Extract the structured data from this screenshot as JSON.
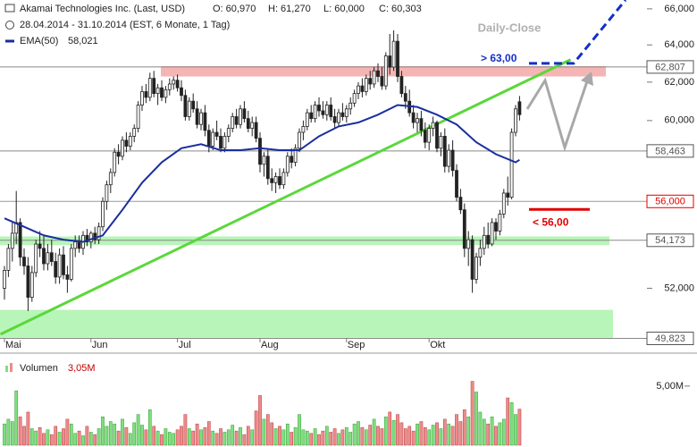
{
  "header": {
    "title": "Akamai Technologies Inc. (Last, USD)",
    "open": "O: 60,970",
    "high": "H: 61,270",
    "low": "L: 60,000",
    "close": "C: 60,303",
    "period": "28.04.2014 - 31.10.2014 (EST, 6 Monate, 1 Tag)",
    "ema_label": "EMA(50)",
    "ema_value": "58,021"
  },
  "chart_data": {
    "type": "candlestick",
    "title": "Daily-Close",
    "log_scale": true,
    "ylim": [
      49.2,
      66.5
    ],
    "yticks": [
      {
        "value": 52,
        "label": "52,000"
      },
      {
        "value": 60,
        "label": "60,000"
      },
      {
        "value": 62,
        "label": "62,000"
      },
      {
        "value": 64,
        "label": "64,000"
      },
      {
        "value": 66,
        "label": "66,000"
      }
    ],
    "months": [
      {
        "value": 0,
        "label": "Mai"
      },
      {
        "value": 22,
        "label": "Jun"
      },
      {
        "value": 44,
        "label": "Jul"
      },
      {
        "value": 65,
        "label": "Aug"
      },
      {
        "value": 87,
        "label": "Sep"
      },
      {
        "value": 108,
        "label": "Okt"
      }
    ],
    "levels": [
      {
        "value": 62.807,
        "label": "62,807",
        "color": "#555555"
      },
      {
        "value": 58.463,
        "label": "58,463",
        "color": "#555555"
      },
      {
        "value": 56.0,
        "label": "56,000",
        "color": "#e00000"
      },
      {
        "value": 54.173,
        "label": "54,173",
        "color": "#555555"
      },
      {
        "value": 49.823,
        "label": "49,823",
        "color": "#555555"
      }
    ],
    "zones": [
      {
        "from": 62.3,
        "to": 62.85,
        "color": "#f5b5b5"
      },
      {
        "from": 53.95,
        "to": 54.35,
        "color": "#b8f5b8"
      },
      {
        "from": 49.85,
        "to": 51.05,
        "color": "#b8f5b8"
      }
    ],
    "trendline": {
      "x": [
        -1,
        144
      ],
      "values": [
        50.0,
        63.2
      ],
      "color": "#5ad83a"
    },
    "target": {
      "value": 63.0,
      "label": "> 63,00",
      "color": "#1430c8"
    },
    "stop": {
      "value": 56.0,
      "label": "< 56,00",
      "color": "#e00000"
    },
    "ema": {
      "name": "EMA(50)",
      "color": "#1a2e9e",
      "x": [
        0,
        5,
        10,
        15,
        20,
        25,
        30,
        35,
        40,
        45,
        50,
        55,
        60,
        65,
        70,
        75,
        80,
        85,
        90,
        95,
        100,
        105,
        110,
        115,
        120,
        125,
        130,
        131
      ],
      "values": [
        55.2,
        54.8,
        54.4,
        54.2,
        54.1,
        54.4,
        55.6,
        56.9,
        57.9,
        58.6,
        58.8,
        58.5,
        58.5,
        58.6,
        58.5,
        58.5,
        59.2,
        59.7,
        59.9,
        60.3,
        60.8,
        60.7,
        60.3,
        59.8,
        58.9,
        58.3,
        57.9,
        58.021
      ]
    },
    "ohlc": [
      [
        52.0,
        53.0,
        51.5,
        52.8
      ],
      [
        52.8,
        54.0,
        52.5,
        53.8
      ],
      [
        53.8,
        55.0,
        53.2,
        54.5
      ],
      [
        54.5,
        56.5,
        54.0,
        55.0
      ],
      [
        55.0,
        55.2,
        53.0,
        53.4
      ],
      [
        53.4,
        53.8,
        52.6,
        53.0
      ],
      [
        53.0,
        53.4,
        51.0,
        51.6
      ],
      [
        51.6,
        53.0,
        51.4,
        52.7
      ],
      [
        52.7,
        54.2,
        52.5,
        54.0
      ],
      [
        54.0,
        54.6,
        53.4,
        53.8
      ],
      [
        53.8,
        54.4,
        52.8,
        53.1
      ],
      [
        53.1,
        54.0,
        52.8,
        53.6
      ],
      [
        53.6,
        54.2,
        53.0,
        53.2
      ],
      [
        53.2,
        53.6,
        52.2,
        52.5
      ],
      [
        52.5,
        53.8,
        52.2,
        53.5
      ],
      [
        53.5,
        53.9,
        52.4,
        52.6
      ],
      [
        52.6,
        53.0,
        51.8,
        52.4
      ],
      [
        52.4,
        54.0,
        52.3,
        53.8
      ],
      [
        53.8,
        54.4,
        53.4,
        54.1
      ],
      [
        54.1,
        54.4,
        53.6,
        53.8
      ],
      [
        53.8,
        54.6,
        53.5,
        54.4
      ],
      [
        54.4,
        54.7,
        53.9,
        54.1
      ],
      [
        54.1,
        54.6,
        53.8,
        54.5
      ],
      [
        54.5,
        54.8,
        54.0,
        54.2
      ],
      [
        54.2,
        55.0,
        54.0,
        54.8
      ],
      [
        54.8,
        56.2,
        54.6,
        56.0
      ],
      [
        56.0,
        57.0,
        55.6,
        56.8
      ],
      [
        56.8,
        57.6,
        56.4,
        57.4
      ],
      [
        57.4,
        58.6,
        57.2,
        58.4
      ],
      [
        58.4,
        58.8,
        57.8,
        58.2
      ],
      [
        58.2,
        59.2,
        58.0,
        59.0
      ],
      [
        59.0,
        59.4,
        58.4,
        58.7
      ],
      [
        58.7,
        59.4,
        58.5,
        59.2
      ],
      [
        59.2,
        59.8,
        58.9,
        59.6
      ],
      [
        59.6,
        61.0,
        59.4,
        60.8
      ],
      [
        60.8,
        61.8,
        60.5,
        61.5
      ],
      [
        61.5,
        61.9,
        60.9,
        61.2
      ],
      [
        61.2,
        62.5,
        61.0,
        62.2
      ],
      [
        62.2,
        62.6,
        61.2,
        61.4
      ],
      [
        61.4,
        61.9,
        60.8,
        61.7
      ],
      [
        61.7,
        62.1,
        61.0,
        61.2
      ],
      [
        61.2,
        61.8,
        60.9,
        61.6
      ],
      [
        61.6,
        62.2,
        61.3,
        61.9
      ],
      [
        61.9,
        62.3,
        61.6,
        62.1
      ],
      [
        62.1,
        62.4,
        61.5,
        61.7
      ],
      [
        61.7,
        62.1,
        61.0,
        61.3
      ],
      [
        61.3,
        61.6,
        60.0,
        60.2
      ],
      [
        60.2,
        61.2,
        60.0,
        61.0
      ],
      [
        61.0,
        61.4,
        60.4,
        60.6
      ],
      [
        60.6,
        61.0,
        59.6,
        59.8
      ],
      [
        59.8,
        60.6,
        59.5,
        60.4
      ],
      [
        60.4,
        60.8,
        59.2,
        59.5
      ],
      [
        59.5,
        59.8,
        58.4,
        58.7
      ],
      [
        58.7,
        59.6,
        58.5,
        59.4
      ],
      [
        59.4,
        60.0,
        59.0,
        59.2
      ],
      [
        59.2,
        59.6,
        58.4,
        58.6
      ],
      [
        58.6,
        59.4,
        58.4,
        59.2
      ],
      [
        59.2,
        59.8,
        58.9,
        59.6
      ],
      [
        59.6,
        60.4,
        59.4,
        60.2
      ],
      [
        60.2,
        60.6,
        59.6,
        59.8
      ],
      [
        59.8,
        60.8,
        59.6,
        60.6
      ],
      [
        60.6,
        61.0,
        59.9,
        60.1
      ],
      [
        60.1,
        60.5,
        59.4,
        59.6
      ],
      [
        59.6,
        60.2,
        59.2,
        59.9
      ],
      [
        59.9,
        60.2,
        58.9,
        59.1
      ],
      [
        59.1,
        59.4,
        57.4,
        57.8
      ],
      [
        57.8,
        58.4,
        57.2,
        58.2
      ],
      [
        58.2,
        58.6,
        56.8,
        57.1
      ],
      [
        57.1,
        57.6,
        56.5,
        56.9
      ],
      [
        56.9,
        57.4,
        56.4,
        57.2
      ],
      [
        57.2,
        57.6,
        56.6,
        56.8
      ],
      [
        56.8,
        57.6,
        56.6,
        57.4
      ],
      [
        57.4,
        58.4,
        57.2,
        58.2
      ],
      [
        58.2,
        58.6,
        57.6,
        57.9
      ],
      [
        57.9,
        58.8,
        57.7,
        58.6
      ],
      [
        58.6,
        59.6,
        58.4,
        59.4
      ],
      [
        59.4,
        60.0,
        59.0,
        59.7
      ],
      [
        59.7,
        60.6,
        59.5,
        60.4
      ],
      [
        60.4,
        60.8,
        59.9,
        60.1
      ],
      [
        60.1,
        61.0,
        59.9,
        60.8
      ],
      [
        60.8,
        61.2,
        60.2,
        60.5
      ],
      [
        60.5,
        61.0,
        60.1,
        60.3
      ],
      [
        60.3,
        61.0,
        60.0,
        60.8
      ],
      [
        60.8,
        61.2,
        60.0,
        60.2
      ],
      [
        60.2,
        60.6,
        59.6,
        59.9
      ],
      [
        59.9,
        60.6,
        59.7,
        60.4
      ],
      [
        60.4,
        60.9,
        60.0,
        60.2
      ],
      [
        60.2,
        60.8,
        59.9,
        60.6
      ],
      [
        60.6,
        61.2,
        60.3,
        60.9
      ],
      [
        60.9,
        61.6,
        60.7,
        61.4
      ],
      [
        61.4,
        62.0,
        61.1,
        61.8
      ],
      [
        61.8,
        62.2,
        61.2,
        61.5
      ],
      [
        61.5,
        62.4,
        61.3,
        62.2
      ],
      [
        62.2,
        62.6,
        61.6,
        61.9
      ],
      [
        61.9,
        62.8,
        61.7,
        62.6
      ],
      [
        62.6,
        63.0,
        62.0,
        62.3
      ],
      [
        62.3,
        62.8,
        61.6,
        61.8
      ],
      [
        61.8,
        63.6,
        61.6,
        63.4
      ],
      [
        63.4,
        64.6,
        62.4,
        62.8
      ],
      [
        62.8,
        64.8,
        62.6,
        64.2
      ],
      [
        64.2,
        64.6,
        62.0,
        62.3
      ],
      [
        62.3,
        62.6,
        61.2,
        61.4
      ],
      [
        61.4,
        61.8,
        60.6,
        61.0
      ],
      [
        61.0,
        61.6,
        60.2,
        60.4
      ],
      [
        60.4,
        60.8,
        59.6,
        59.9
      ],
      [
        59.9,
        60.4,
        59.4,
        60.1
      ],
      [
        60.1,
        60.5,
        59.2,
        59.5
      ],
      [
        59.5,
        59.9,
        58.6,
        58.9
      ],
      [
        58.9,
        59.8,
        58.5,
        59.6
      ],
      [
        59.6,
        60.2,
        59.2,
        59.9
      ],
      [
        59.9,
        60.0,
        58.4,
        58.6
      ],
      [
        58.6,
        59.4,
        58.2,
        59.2
      ],
      [
        59.2,
        59.6,
        57.4,
        57.7
      ],
      [
        57.7,
        58.8,
        57.4,
        58.5
      ],
      [
        58.5,
        59.0,
        57.2,
        57.5
      ],
      [
        57.5,
        57.8,
        56.0,
        56.2
      ],
      [
        56.2,
        56.6,
        55.4,
        55.6
      ],
      [
        55.6,
        55.9,
        53.4,
        53.8
      ],
      [
        53.8,
        54.6,
        53.0,
        54.2
      ],
      [
        54.2,
        54.4,
        51.8,
        52.4
      ],
      [
        52.4,
        53.6,
        52.2,
        53.4
      ],
      [
        53.4,
        54.2,
        53.0,
        53.8
      ],
      [
        53.8,
        54.8,
        53.5,
        54.4
      ],
      [
        54.4,
        55.0,
        53.8,
        54.0
      ],
      [
        54.0,
        55.2,
        53.9,
        55.0
      ],
      [
        55.0,
        55.2,
        54.2,
        54.6
      ],
      [
        54.6,
        55.6,
        54.4,
        55.4
      ],
      [
        55.4,
        56.6,
        55.2,
        56.4
      ],
      [
        56.4,
        57.2,
        55.8,
        56.2
      ],
      [
        56.2,
        59.6,
        56.1,
        59.4
      ],
      [
        59.4,
        60.8,
        59.2,
        60.6
      ],
      [
        60.97,
        61.27,
        60.0,
        60.303
      ]
    ],
    "volume": {
      "name": "Volumen",
      "last_label": "3,05M",
      "ylim": [
        0,
        6.5
      ],
      "yticks": [
        {
          "value": 5,
          "label": "5,00M"
        }
      ],
      "up_color": "#7ee07e",
      "down_color": "#f08a8a",
      "values": [
        1.8,
        2.2,
        2.0,
        4.6,
        2.4,
        1.6,
        2.8,
        1.4,
        1.2,
        1.5,
        1.0,
        1.3,
        0.9,
        1.6,
        1.1,
        1.4,
        2.2,
        1.8,
        1.0,
        1.2,
        0.8,
        1.6,
        1.1,
        0.9,
        1.4,
        2.4,
        1.6,
        2.0,
        1.8,
        1.2,
        2.2,
        1.5,
        1.0,
        1.9,
        2.6,
        1.7,
        1.3,
        3.0,
        1.6,
        1.2,
        0.9,
        1.4,
        1.1,
        1.0,
        1.3,
        1.6,
        2.6,
        1.4,
        1.2,
        1.8,
        1.3,
        1.5,
        2.0,
        1.2,
        1.0,
        1.4,
        1.1,
        1.3,
        1.7,
        1.2,
        1.5,
        0.9,
        1.6,
        1.3,
        2.9,
        4.2,
        2.2,
        2.6,
        1.9,
        1.4,
        1.6,
        1.3,
        1.8,
        1.1,
        1.5,
        2.6,
        1.3,
        1.2,
        1.0,
        1.4,
        0.9,
        1.2,
        1.6,
        1.1,
        1.4,
        1.0,
        1.3,
        1.5,
        1.1,
        1.8,
        2.0,
        1.5,
        1.3,
        1.7,
        2.2,
        1.6,
        1.4,
        2.4,
        2.8,
        2.1,
        2.6,
        1.9,
        1.4,
        1.6,
        1.2,
        1.8,
        2.0,
        1.5,
        1.3,
        1.7,
        1.9,
        1.4,
        2.2,
        1.8,
        1.6,
        2.6,
        2.0,
        3.0,
        2.4,
        5.4,
        4.5,
        2.8,
        2.2,
        1.8,
        2.4,
        1.6,
        1.9,
        2.2,
        4.0,
        3.6,
        2.6,
        3.05
      ]
    }
  }
}
